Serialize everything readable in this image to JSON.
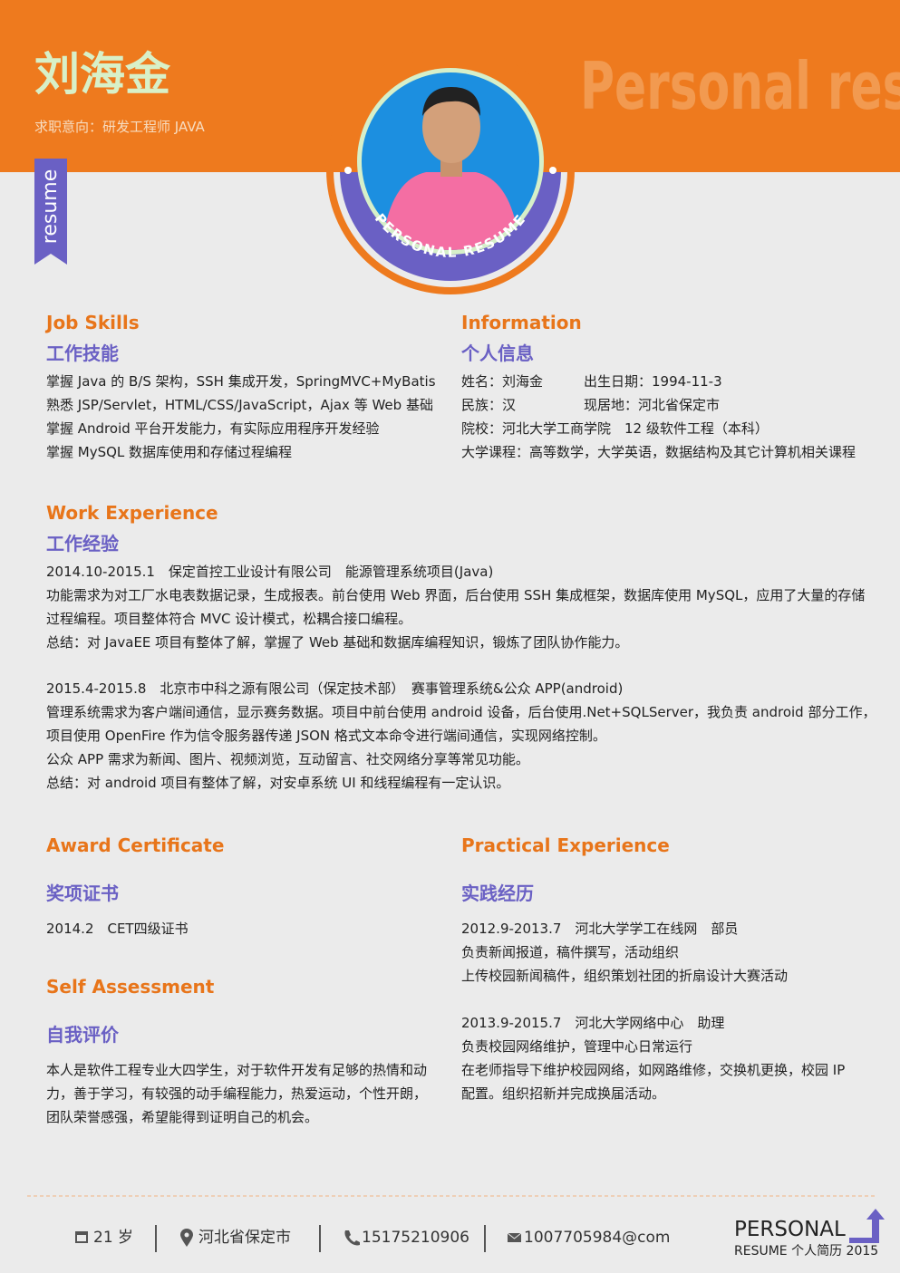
{
  "header": {
    "name": "刘海金",
    "intention": "求职意向：研发工程师 JAVA",
    "watermark": "Personal resume",
    "ribbon": "resume",
    "badge": "PERSONAL RESUME"
  },
  "job_skills": {
    "title_en": "Job Skills",
    "title_cn": "工作技能",
    "lines": [
      "掌握 Java 的 B/S 架构，SSH 集成开发，SpringMVC+MyBatis",
      "熟悉 JSP/Servlet，HTML/CSS/JavaScript，Ajax 等 Web 基础",
      "掌握 Android 平台开发能力，有实际应用程序开发经验",
      "掌握 MySQL 数据库使用和存储过程编程"
    ]
  },
  "information": {
    "title_en": "Information",
    "title_cn": "个人信息",
    "name": "姓名：刘海金",
    "birth": "出生日期：1994-11-3",
    "ethnicity": "民族：汉",
    "residence": "现居地：河北省保定市",
    "school": "院校：河北大学工商学院　12 级软件工程（本科）",
    "courses": "大学课程：高等数学，大学英语，数据结构及其它计算机相关课程"
  },
  "work_experience": {
    "title_en": "Work Experience",
    "title_cn": "工作经验",
    "entries": [
      {
        "heading": "2014.10-2015.1　保定首控工业设计有限公司　能源管理系统项目(Java)",
        "lines": [
          "功能需求为对工厂水电表数据记录，生成报表。前台使用 Web 界面，后台使用 SSH 集成框架，数据库使用 MySQL，应用了大量的存储",
          "过程编程。项目整体符合 MVC 设计模式，松耦合接口编程。",
          "总结：对 JavaEE 项目有整体了解，掌握了 Web 基础和数据库编程知识，锻炼了团队协作能力。"
        ]
      },
      {
        "heading": "2015.4-2015.8　北京市中科之源有限公司（保定技术部）　赛事管理系统&公众 APP(android)",
        "lines": [
          "管理系统需求为客户端间通信，显示赛务数据。项目中前台使用 android 设备，后台使用.Net+SQLServer，我负责 android 部分工作，",
          "项目使用 OpenFire 作为信令服务器传递 JSON 格式文本命令进行端间通信，实现网络控制。",
          "公众 APP 需求为新闻、图片、视频浏览，互动留言、社交网络分享等常见功能。",
          "总结：对 android 项目有整体了解，对安卓系统 UI 和线程编程有一定认识。"
        ]
      }
    ]
  },
  "award_certificate": {
    "title_en": "Award Certificate",
    "title_cn": "奖项证书",
    "lines": [
      "2014.2　CET四级证书"
    ]
  },
  "self_assessment": {
    "title_en": "Self Assessment",
    "title_cn": "自我评价",
    "lines": [
      "本人是软件工程专业大四学生，对于软件开发有足够的热情和动",
      "力，善于学习，有较强的动手编程能力，热爱运动，个性开朗，",
      "团队荣誉感强，希望能得到证明自己的机会。"
    ]
  },
  "practical_experience": {
    "title_en": "Practical Experience",
    "title_cn": "实践经历",
    "entries": [
      {
        "heading": "2012.9-2013.7　河北大学学工在线网　部员",
        "lines": [
          "负责新闻报道，稿件撰写，活动组织",
          "上传校园新闻稿件，组织策划社团的折扇设计大赛活动"
        ]
      },
      {
        "heading": "2013.9-2015.7　河北大学网络中心　助理",
        "lines": [
          "负责校园网络维护，管理中心日常运行",
          "在老师指导下维护校园网络，如网路维修，交换机更换，校园 IP",
          "配置。组织招新并完成换届活动。"
        ]
      }
    ]
  },
  "footer": {
    "age": "21 岁",
    "location": "河北省保定市",
    "phone": "15175210906",
    "email": "1007705984@com",
    "brand": "PERSONAL",
    "brand_sub": "RESUME 个人简历 2015"
  }
}
